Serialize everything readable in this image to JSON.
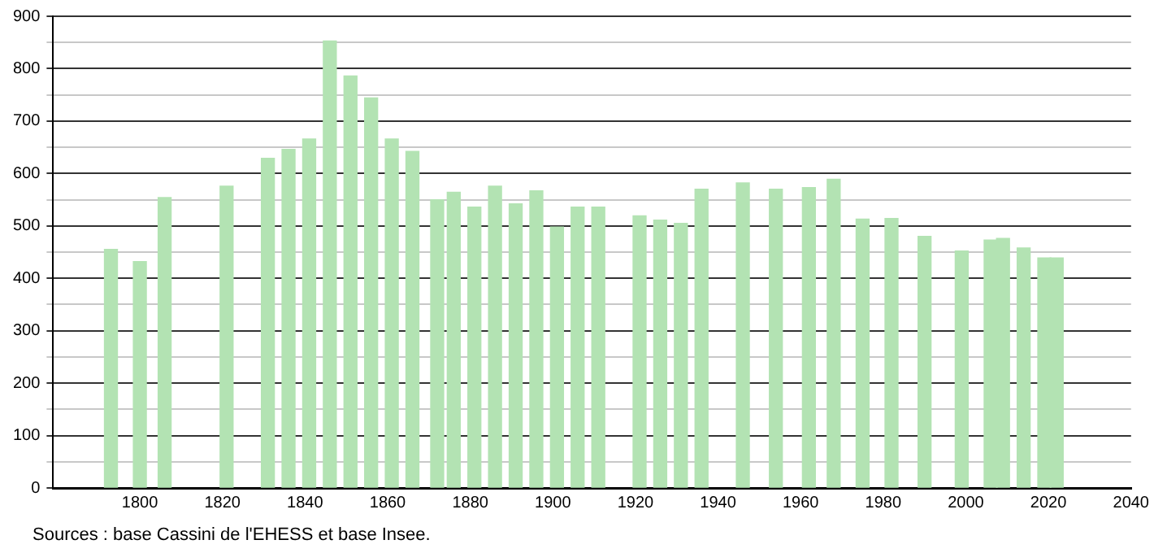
{
  "chart_data": {
    "type": "bar",
    "x": [
      1793,
      1800,
      1806,
      1821,
      1831,
      1836,
      1841,
      1846,
      1851,
      1856,
      1861,
      1866,
      1872,
      1876,
      1881,
      1886,
      1891,
      1896,
      1901,
      1906,
      1911,
      1921,
      1926,
      1931,
      1936,
      1946,
      1954,
      1962,
      1968,
      1975,
      1982,
      1990,
      1999,
      2006,
      2009,
      2014,
      2019,
      2022
    ],
    "values": [
      455,
      432,
      554,
      576,
      629,
      646,
      666,
      853,
      786,
      744,
      666,
      642,
      550,
      564,
      536,
      576,
      542,
      567,
      498,
      536,
      536,
      519,
      511,
      505,
      570,
      582,
      570,
      573,
      589,
      513,
      514,
      480,
      452,
      473,
      476,
      458,
      439,
      439
    ],
    "color": "#b3e3b3",
    "xlim": [
      1779,
      2040
    ],
    "xticks": [
      1800,
      1820,
      1840,
      1860,
      1880,
      1900,
      1920,
      1940,
      1960,
      1980,
      2000,
      2020,
      2040
    ],
    "ylim": [
      0,
      900
    ],
    "yticks": [
      0,
      {
        "value": 50,
        "label": null
      },
      100,
      {
        "value": 150,
        "label": null
      },
      200,
      {
        "value": 250,
        "label": null
      },
      300,
      {
        "value": 350,
        "label": null
      },
      400,
      {
        "value": 450,
        "label": null
      },
      500,
      {
        "value": 550,
        "label": null
      },
      600,
      {
        "value": 650,
        "label": null
      },
      700,
      {
        "value": 750,
        "label": null
      },
      800,
      {
        "value": 850,
        "label": null
      },
      900
    ],
    "grid": "y",
    "legend": false,
    "annotations": [
      "Sources : base Cassini de l'EHESS et base Insee."
    ]
  }
}
